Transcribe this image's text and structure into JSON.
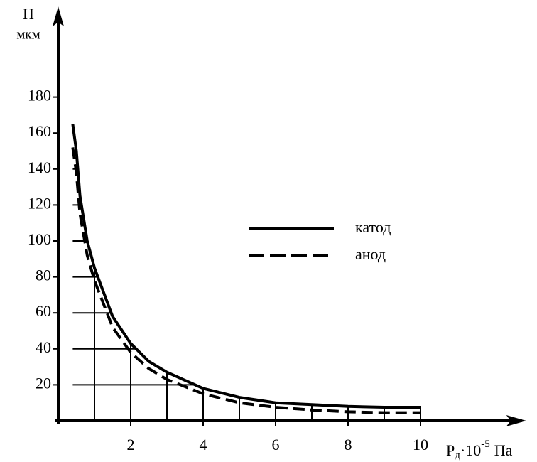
{
  "chart_data": {
    "type": "line",
    "y_label": {
      "symbol": "H",
      "unit": "мкм"
    },
    "x_label": {
      "base": "P",
      "sub": "д",
      "mid": "·10",
      "sup": "-5",
      "unit": "Па"
    },
    "x": [
      0.4,
      0.5,
      0.6,
      0.8,
      1,
      1.5,
      2,
      2.5,
      3,
      4,
      5,
      6,
      7,
      8,
      9,
      10
    ],
    "series": [
      {
        "name": "катод",
        "color": "#000000",
        "dash": false,
        "values": [
          165,
          150,
          125,
          100,
          85,
          58,
          43,
          33,
          27,
          18,
          13,
          10,
          9,
          8,
          7.5,
          7.5
        ]
      },
      {
        "name": "анод",
        "color": "#000000",
        "dash": true,
        "values": [
          152,
          138,
          115,
          92,
          78,
          52,
          38,
          29,
          23,
          15,
          10,
          7.5,
          6,
          5,
          4.5,
          4.5
        ]
      }
    ],
    "xlim": [
      0,
      12.8
    ],
    "ylim": [
      0,
      228
    ],
    "xticks": [
      2,
      4,
      6,
      8,
      10
    ],
    "yticks": [
      20,
      40,
      60,
      80,
      100,
      120,
      140,
      160,
      180
    ],
    "xgrid": [
      1,
      2,
      3,
      4,
      5,
      6,
      7,
      8,
      9,
      10
    ],
    "grid": true
  }
}
